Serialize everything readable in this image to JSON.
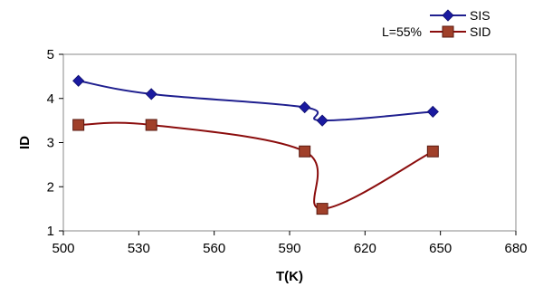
{
  "chart_data": {
    "type": "line",
    "title": "",
    "xlabel": "T(K)",
    "ylabel": "ID",
    "xlim": [
      500,
      680
    ],
    "ylim": [
      1,
      5
    ],
    "xticks": [
      500,
      530,
      560,
      590,
      620,
      650,
      680
    ],
    "yticks": [
      1,
      2,
      3,
      4,
      5
    ],
    "grid": false,
    "legend_position": "top-right",
    "annotation": "L=55%",
    "series": [
      {
        "name": "SIS",
        "color": "#1f1f8f",
        "marker": "diamond",
        "marker_color": "#1a1aa0",
        "x": [
          506,
          535,
          596,
          603,
          647
        ],
        "y": [
          4.4,
          4.1,
          3.8,
          3.5,
          3.7
        ]
      },
      {
        "name": "SID",
        "color": "#8b0d0d",
        "marker": "square",
        "marker_color": "#a0402a",
        "x": [
          506,
          535,
          596,
          603,
          647
        ],
        "y": [
          3.4,
          3.4,
          2.8,
          1.5,
          2.8
        ]
      }
    ]
  }
}
